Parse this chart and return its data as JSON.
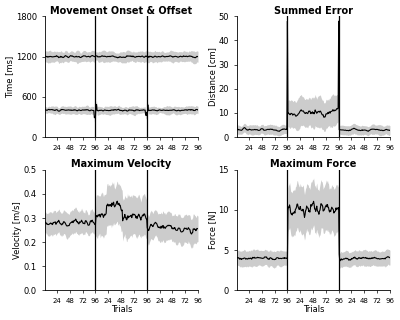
{
  "title_topleft": "Movement Onset & Offset",
  "title_topright": "Summed Error",
  "title_botleft": "Maximum Velocity",
  "title_botright": "Maximum Force",
  "ylabel_topleft": "Time [ms]",
  "ylabel_topright": "Distance [cm]",
  "ylabel_botleft": "Velocity [m/s]",
  "ylabel_botright": "Force [N]",
  "xlabel": "Trials",
  "ylim_topleft": [
    0,
    1800
  ],
  "ylim_topright": [
    0,
    50
  ],
  "ylim_botleft": [
    0,
    0.5
  ],
  "ylim_botright": [
    0,
    15
  ],
  "yticks_topleft": [
    0,
    600,
    1200,
    1800
  ],
  "yticks_topright": [
    0,
    10,
    20,
    30,
    40,
    50
  ],
  "yticks_botleft": [
    0,
    0.1,
    0.2,
    0.3,
    0.4,
    0.5
  ],
  "yticks_botright": [
    0,
    5,
    10,
    15
  ],
  "n_trials_per_block": 96,
  "n_blocks": 3,
  "vline_positions": [
    96,
    192
  ],
  "xtick_positions": [
    24,
    48,
    72,
    96,
    120,
    144,
    168,
    192,
    216,
    240,
    264,
    288
  ],
  "xtick_labels": [
    "24",
    "48",
    "72",
    "96",
    "24",
    "48",
    "72",
    "96",
    "24",
    "48",
    "72",
    "96"
  ],
  "bg_color": "#ffffff",
  "line_color_mean": "#000000",
  "line_color_std": "#aaaaaa",
  "vline_color": "#000000"
}
